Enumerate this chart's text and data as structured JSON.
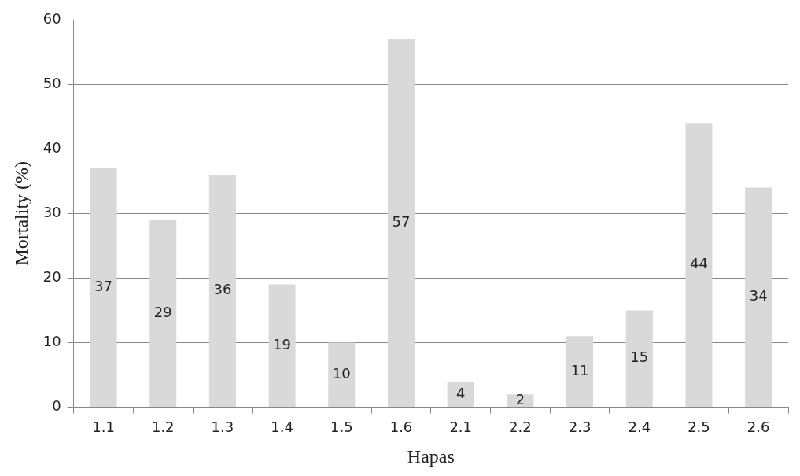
{
  "chart_data": {
    "type": "bar",
    "xlabel": "Hapas",
    "ylabel": "Mortality (%)",
    "categories": [
      "1.1",
      "1.2",
      "1.3",
      "1.4",
      "1.5",
      "1.6",
      "2.1",
      "2.2",
      "2.3",
      "2.4",
      "2.5",
      "2.6"
    ],
    "values": [
      37,
      29,
      36,
      19,
      10,
      57,
      4,
      2,
      11,
      15,
      44,
      34
    ],
    "color": "#d9d9d9",
    "ylim": [
      0,
      60
    ],
    "yticks": [
      0,
      10,
      20,
      30,
      40,
      50,
      60
    ],
    "grid": "y",
    "data_labels": true
  }
}
